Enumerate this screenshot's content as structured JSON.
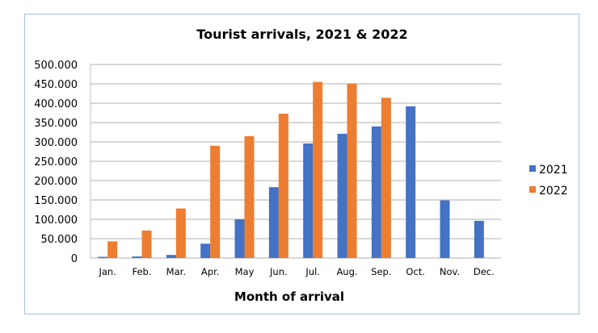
{
  "chart_data": {
    "type": "bar",
    "title": "Tourist arrivals, 2021 & 2022",
    "xlabel": "Month of arrival",
    "ylabel": "",
    "categories": [
      "Jan.",
      "Feb.",
      "Mar.",
      "Apr.",
      "May",
      "Jun.",
      "Jul.",
      "Aug.",
      "Sep.",
      "Oct.",
      "Nov.",
      "Dec."
    ],
    "series": [
      {
        "name": "2021",
        "color": "#4472c4",
        "values": [
          3000,
          4000,
          8000,
          37000,
          100000,
          183000,
          296000,
          321000,
          340000,
          392000,
          149000,
          96000
        ]
      },
      {
        "name": "2022",
        "color": "#ed7d31",
        "values": [
          43000,
          71000,
          128000,
          290000,
          315000,
          373000,
          455000,
          451000,
          414000,
          null,
          null,
          null
        ]
      }
    ],
    "ylim": [
      0,
      500000
    ],
    "yticks": [
      "0",
      "50.000",
      "100.000",
      "150.000",
      "200.000",
      "250.000",
      "300.000",
      "350.000",
      "400.000",
      "450.000",
      "500.000"
    ],
    "grid": true,
    "legend_position": "right"
  }
}
